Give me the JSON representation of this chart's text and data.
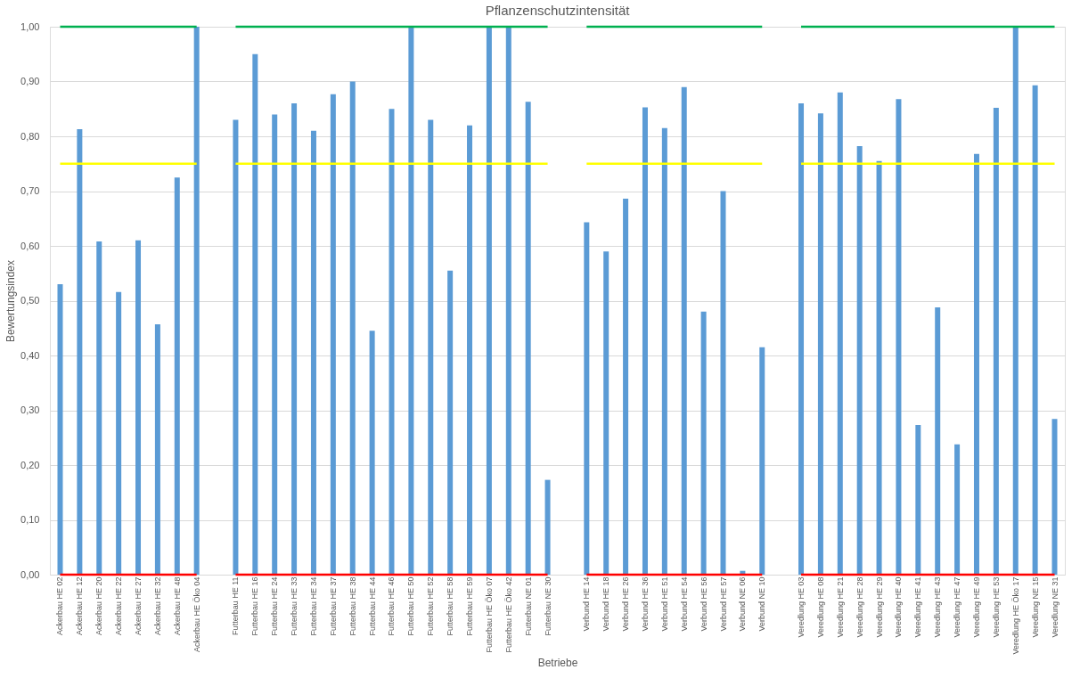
{
  "chart_data": {
    "type": "bar",
    "title": "Pflanzenschutzintensität",
    "xlabel": "Betriebe",
    "ylabel": "Bewertungsindex",
    "categories": [
      "Ackerbau HE 02",
      "Ackerbau HE 12",
      "Ackerbau HE 20",
      "Ackerbau HE 22",
      "Ackerbau HE 27",
      "Ackerbau HE 32",
      "Ackerbau HE 48",
      "Ackerbau HE Öko 04",
      null,
      "Futterbau HE 11",
      "Futterbau HE 16",
      "Futterbau HE 24",
      "Futterbau HE 33",
      "Futterbau HE 34",
      "Futterbau HE 37",
      "Futterbau HE 38",
      "Futterbau HE 44",
      "Futterbau HE 46",
      "Futterbau HE 50",
      "Futterbau HE 52",
      "Futterbau HE 58",
      "Futterbau HE 59",
      "Futterbau HE Öko 07",
      "Futterbau HE Öko 42",
      "Futterbau NE 01",
      "Futterbau NE 30",
      null,
      "Verbund HE 14",
      "Verbund HE 18",
      "Verbund HE 26",
      "Verbund HE 36",
      "Verbund HE 51",
      "Verbund HE 54",
      "Verbund HE 56",
      "Verbund HE 57",
      "Verbund NE 06",
      "Verbund NE 10",
      null,
      "Veredlung HE 03",
      "Veredlung HE 08",
      "Veredlung HE 21",
      "Veredlung HE 28",
      "Veredlung HE 29",
      "Veredlung HE 40",
      "Veredlung HE 41",
      "Veredlung HE 43",
      "Veredlung HE 47",
      "Veredlung HE 49",
      "Veredlung HE 53",
      "Veredlung HE Öko 17",
      "Veredlung NE 15",
      "Veredlung NE 31"
    ],
    "series": [
      {
        "color": "#5b9bd5",
        "values": [
          0.53,
          0.813,
          0.608,
          0.516,
          0.61,
          0.457,
          0.725,
          1.0,
          null,
          0.83,
          0.95,
          0.84,
          0.86,
          0.81,
          0.877,
          0.9,
          0.445,
          0.85,
          1.0,
          0.83,
          0.555,
          0.82,
          1.0,
          1.0,
          0.863,
          0.173,
          null,
          0.643,
          0.59,
          0.686,
          0.853,
          0.815,
          0.89,
          0.48,
          0.7,
          0.007,
          0.415,
          null,
          0.86,
          0.842,
          0.88,
          0.782,
          0.755,
          0.868,
          0.273,
          0.488,
          0.238,
          0.768,
          0.852,
          1.0,
          0.893,
          0.284
        ]
      },
      {
        "type": "line",
        "color": "#00b050",
        "values": [
          1,
          1,
          1,
          1,
          1,
          1,
          1,
          1,
          null,
          1,
          1,
          1,
          1,
          1,
          1,
          1,
          1,
          1,
          1,
          1,
          1,
          1,
          1,
          1,
          1,
          1,
          null,
          1,
          1,
          1,
          1,
          1,
          1,
          1,
          1,
          1,
          1,
          null,
          1,
          1,
          1,
          1,
          1,
          1,
          1,
          1,
          1,
          1,
          1,
          1,
          1,
          1
        ]
      },
      {
        "type": "line",
        "color": "#ffff00",
        "values": [
          0.75,
          0.75,
          0.75,
          0.75,
          0.75,
          0.75,
          0.75,
          0.75,
          null,
          0.75,
          0.75,
          0.75,
          0.75,
          0.75,
          0.75,
          0.75,
          0.75,
          0.75,
          0.75,
          0.75,
          0.75,
          0.75,
          0.75,
          0.75,
          0.75,
          0.75,
          null,
          0.75,
          0.75,
          0.75,
          0.75,
          0.75,
          0.75,
          0.75,
          0.75,
          0.75,
          0.75,
          null,
          0.75,
          0.75,
          0.75,
          0.75,
          0.75,
          0.75,
          0.75,
          0.75,
          0.75,
          0.75,
          0.75,
          0.75,
          0.75,
          0.75
        ]
      },
      {
        "type": "line",
        "color": "#ff0000",
        "values": [
          0,
          0,
          0,
          0,
          0,
          0,
          0,
          0,
          null,
          0,
          0,
          0,
          0,
          0,
          0,
          0,
          0,
          0,
          0,
          0,
          0,
          0,
          0,
          0,
          0,
          0,
          null,
          0,
          0,
          0,
          0,
          0,
          0,
          0,
          0,
          0,
          0,
          null,
          0,
          0,
          0,
          0,
          0,
          0,
          0,
          0,
          0,
          0,
          0,
          0,
          0,
          0
        ]
      }
    ],
    "ylim": [
      0,
      1.0
    ],
    "yticks": [
      {
        "value": 0,
        "label": "0,00"
      },
      {
        "value": 0.1,
        "label": "0,10"
      },
      {
        "value": 0.2,
        "label": "0,20"
      },
      {
        "value": 0.3,
        "label": "0,30"
      },
      {
        "value": 0.4,
        "label": "0,40"
      },
      {
        "value": 0.5,
        "label": "0,50"
      },
      {
        "value": 0.6,
        "label": "0,60"
      },
      {
        "value": 0.7,
        "label": "0,70"
      },
      {
        "value": 0.8,
        "label": "0,80"
      },
      {
        "value": 0.9,
        "label": "0,90"
      },
      {
        "value": 1.0,
        "label": "1,00"
      }
    ],
    "grid": "y"
  }
}
